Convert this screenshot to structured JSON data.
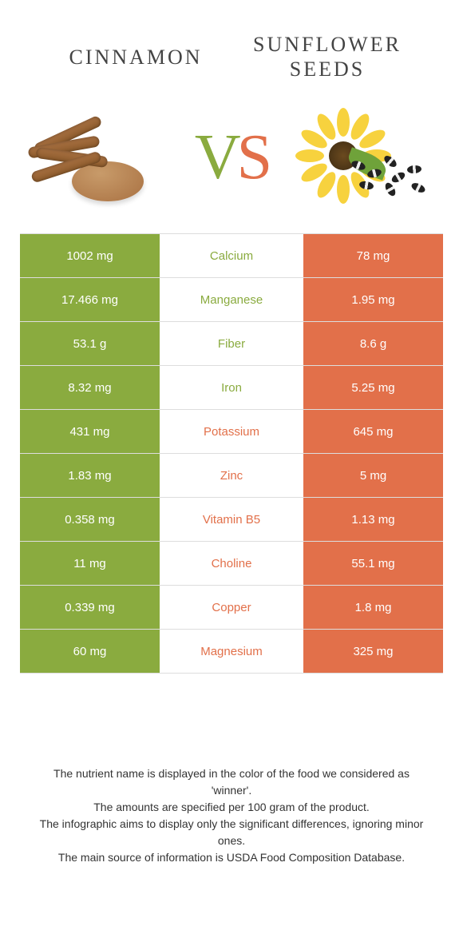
{
  "colors": {
    "left": "#8aab3f",
    "right": "#e2704a",
    "row_border": "#dddddd",
    "background": "#ffffff",
    "text": "#333333",
    "cell_text": "#ffffff"
  },
  "header": {
    "left_title": "Cinnamon",
    "right_title": "Sunflower seeds",
    "vs_v": "V",
    "vs_s": "S"
  },
  "table": {
    "rows": [
      {
        "left": "1002 mg",
        "label": "Calcium",
        "right": "78 mg",
        "winner": "left"
      },
      {
        "left": "17.466 mg",
        "label": "Manganese",
        "right": "1.95 mg",
        "winner": "left"
      },
      {
        "left": "53.1 g",
        "label": "Fiber",
        "right": "8.6 g",
        "winner": "left"
      },
      {
        "left": "8.32 mg",
        "label": "Iron",
        "right": "5.25 mg",
        "winner": "left"
      },
      {
        "left": "431 mg",
        "label": "Potassium",
        "right": "645 mg",
        "winner": "right"
      },
      {
        "left": "1.83 mg",
        "label": "Zinc",
        "right": "5 mg",
        "winner": "right"
      },
      {
        "left": "0.358 mg",
        "label": "Vitamin B5",
        "right": "1.13 mg",
        "winner": "right"
      },
      {
        "left": "11 mg",
        "label": "Choline",
        "right": "55.1 mg",
        "winner": "right"
      },
      {
        "left": "0.339 mg",
        "label": "Copper",
        "right": "1.8 mg",
        "winner": "right"
      },
      {
        "left": "60 mg",
        "label": "Magnesium",
        "right": "325 mg",
        "winner": "right"
      }
    ]
  },
  "footer": {
    "line1": "The nutrient name is displayed in the color of the food we considered as 'winner'.",
    "line2": "The amounts are specified per 100 gram of the product.",
    "line3": "The infographic aims to display only the significant differences, ignoring minor ones.",
    "line4": "The main source of information is USDA Food Composition Database."
  }
}
